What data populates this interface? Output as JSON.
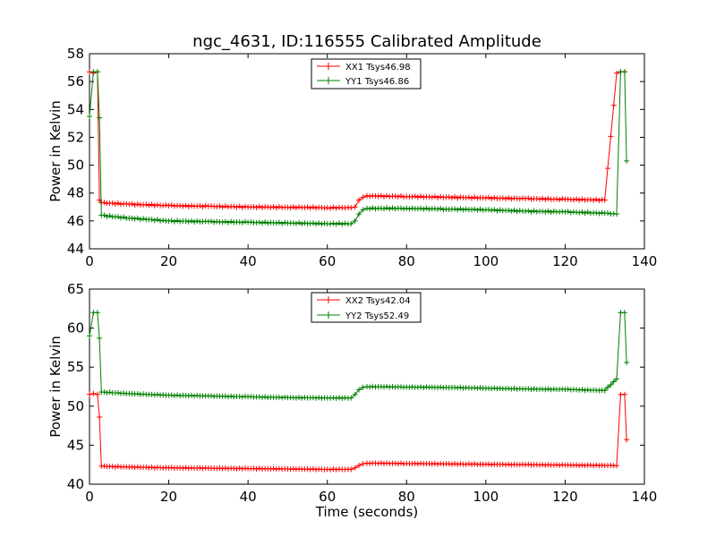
{
  "chart_data": [
    {
      "type": "line",
      "title": "ngc_4631, ID:116555 Calibrated Amplitude",
      "xlabel": "",
      "ylabel": "Power in Kelvin",
      "xlim": [
        0,
        140
      ],
      "ylim": [
        44,
        58
      ],
      "xticks": [
        "0",
        "20",
        "40",
        "60",
        "80",
        "100",
        "120",
        "140"
      ],
      "yticks": [
        "44",
        "46",
        "48",
        "50",
        "52",
        "54",
        "56",
        "58"
      ],
      "legend_position": "top-center",
      "series": [
        {
          "name": "XX1 Tsys46.98",
          "color": "#ff0000",
          "marker": "+",
          "x": [
            0,
            1,
            2,
            2.5,
            3,
            10,
            20,
            30,
            40,
            50,
            60,
            66,
            67,
            68,
            69,
            70,
            80,
            90,
            100,
            110,
            120,
            130,
            133,
            134,
            135
          ],
          "y": [
            56.7,
            56.6,
            56.7,
            47.5,
            47.3,
            47.2,
            47.1,
            47.05,
            47.0,
            46.98,
            46.95,
            46.95,
            47.0,
            47.5,
            47.7,
            47.8,
            47.75,
            47.7,
            47.65,
            47.6,
            47.55,
            47.5,
            56.6,
            56.7,
            56.7
          ]
        },
        {
          "name": "YY1 Tsys46.86",
          "color": "#008000",
          "marker": "+",
          "x": [
            0,
            1,
            2,
            2.5,
            3,
            10,
            20,
            30,
            40,
            50,
            60,
            66,
            67,
            68,
            69,
            70,
            80,
            90,
            100,
            110,
            120,
            130,
            133,
            134,
            135,
            135.5
          ],
          "y": [
            53.5,
            56.7,
            56.7,
            53.4,
            46.4,
            46.2,
            46.0,
            45.95,
            45.9,
            45.85,
            45.8,
            45.8,
            46.0,
            46.5,
            46.8,
            46.9,
            46.9,
            46.85,
            46.8,
            46.7,
            46.65,
            46.55,
            46.5,
            56.7,
            56.7,
            50.3
          ]
        }
      ]
    },
    {
      "type": "line",
      "title": "",
      "xlabel": "Time (seconds)",
      "ylabel": "Power in Kelvin",
      "xlim": [
        0,
        140
      ],
      "ylim": [
        40,
        65
      ],
      "xticks": [
        "0",
        "20",
        "40",
        "60",
        "80",
        "100",
        "120",
        "140"
      ],
      "yticks": [
        "40",
        "45",
        "50",
        "55",
        "60",
        "65"
      ],
      "legend_position": "top-center",
      "series": [
        {
          "name": "XX2 Tsys42.04",
          "color": "#ff0000",
          "marker": "+",
          "x": [
            0,
            1,
            2,
            2.5,
            3,
            10,
            20,
            30,
            40,
            50,
            60,
            66,
            67,
            68,
            69,
            70,
            80,
            90,
            100,
            110,
            120,
            130,
            133,
            134,
            135,
            135.5
          ],
          "y": [
            51.5,
            51.6,
            51.5,
            48.6,
            42.3,
            42.2,
            42.1,
            42.05,
            42.0,
            41.95,
            41.9,
            41.9,
            42.1,
            42.4,
            42.6,
            42.7,
            42.65,
            42.6,
            42.55,
            42.5,
            42.45,
            42.4,
            42.4,
            51.5,
            51.5,
            45.7
          ]
        },
        {
          "name": "YY2 Tsys52.49",
          "color": "#008000",
          "marker": "+",
          "x": [
            0,
            1,
            2,
            2.5,
            3,
            10,
            20,
            30,
            40,
            50,
            60,
            66,
            67,
            68,
            69,
            70,
            80,
            90,
            100,
            110,
            120,
            130,
            133,
            134,
            135,
            135.5
          ],
          "y": [
            59.0,
            62.0,
            62.0,
            58.7,
            51.8,
            51.6,
            51.4,
            51.3,
            51.2,
            51.1,
            51.05,
            51.05,
            51.5,
            52.1,
            52.4,
            52.5,
            52.45,
            52.4,
            52.3,
            52.2,
            52.15,
            52.0,
            53.5,
            62.0,
            62.0,
            55.6
          ]
        }
      ]
    }
  ]
}
